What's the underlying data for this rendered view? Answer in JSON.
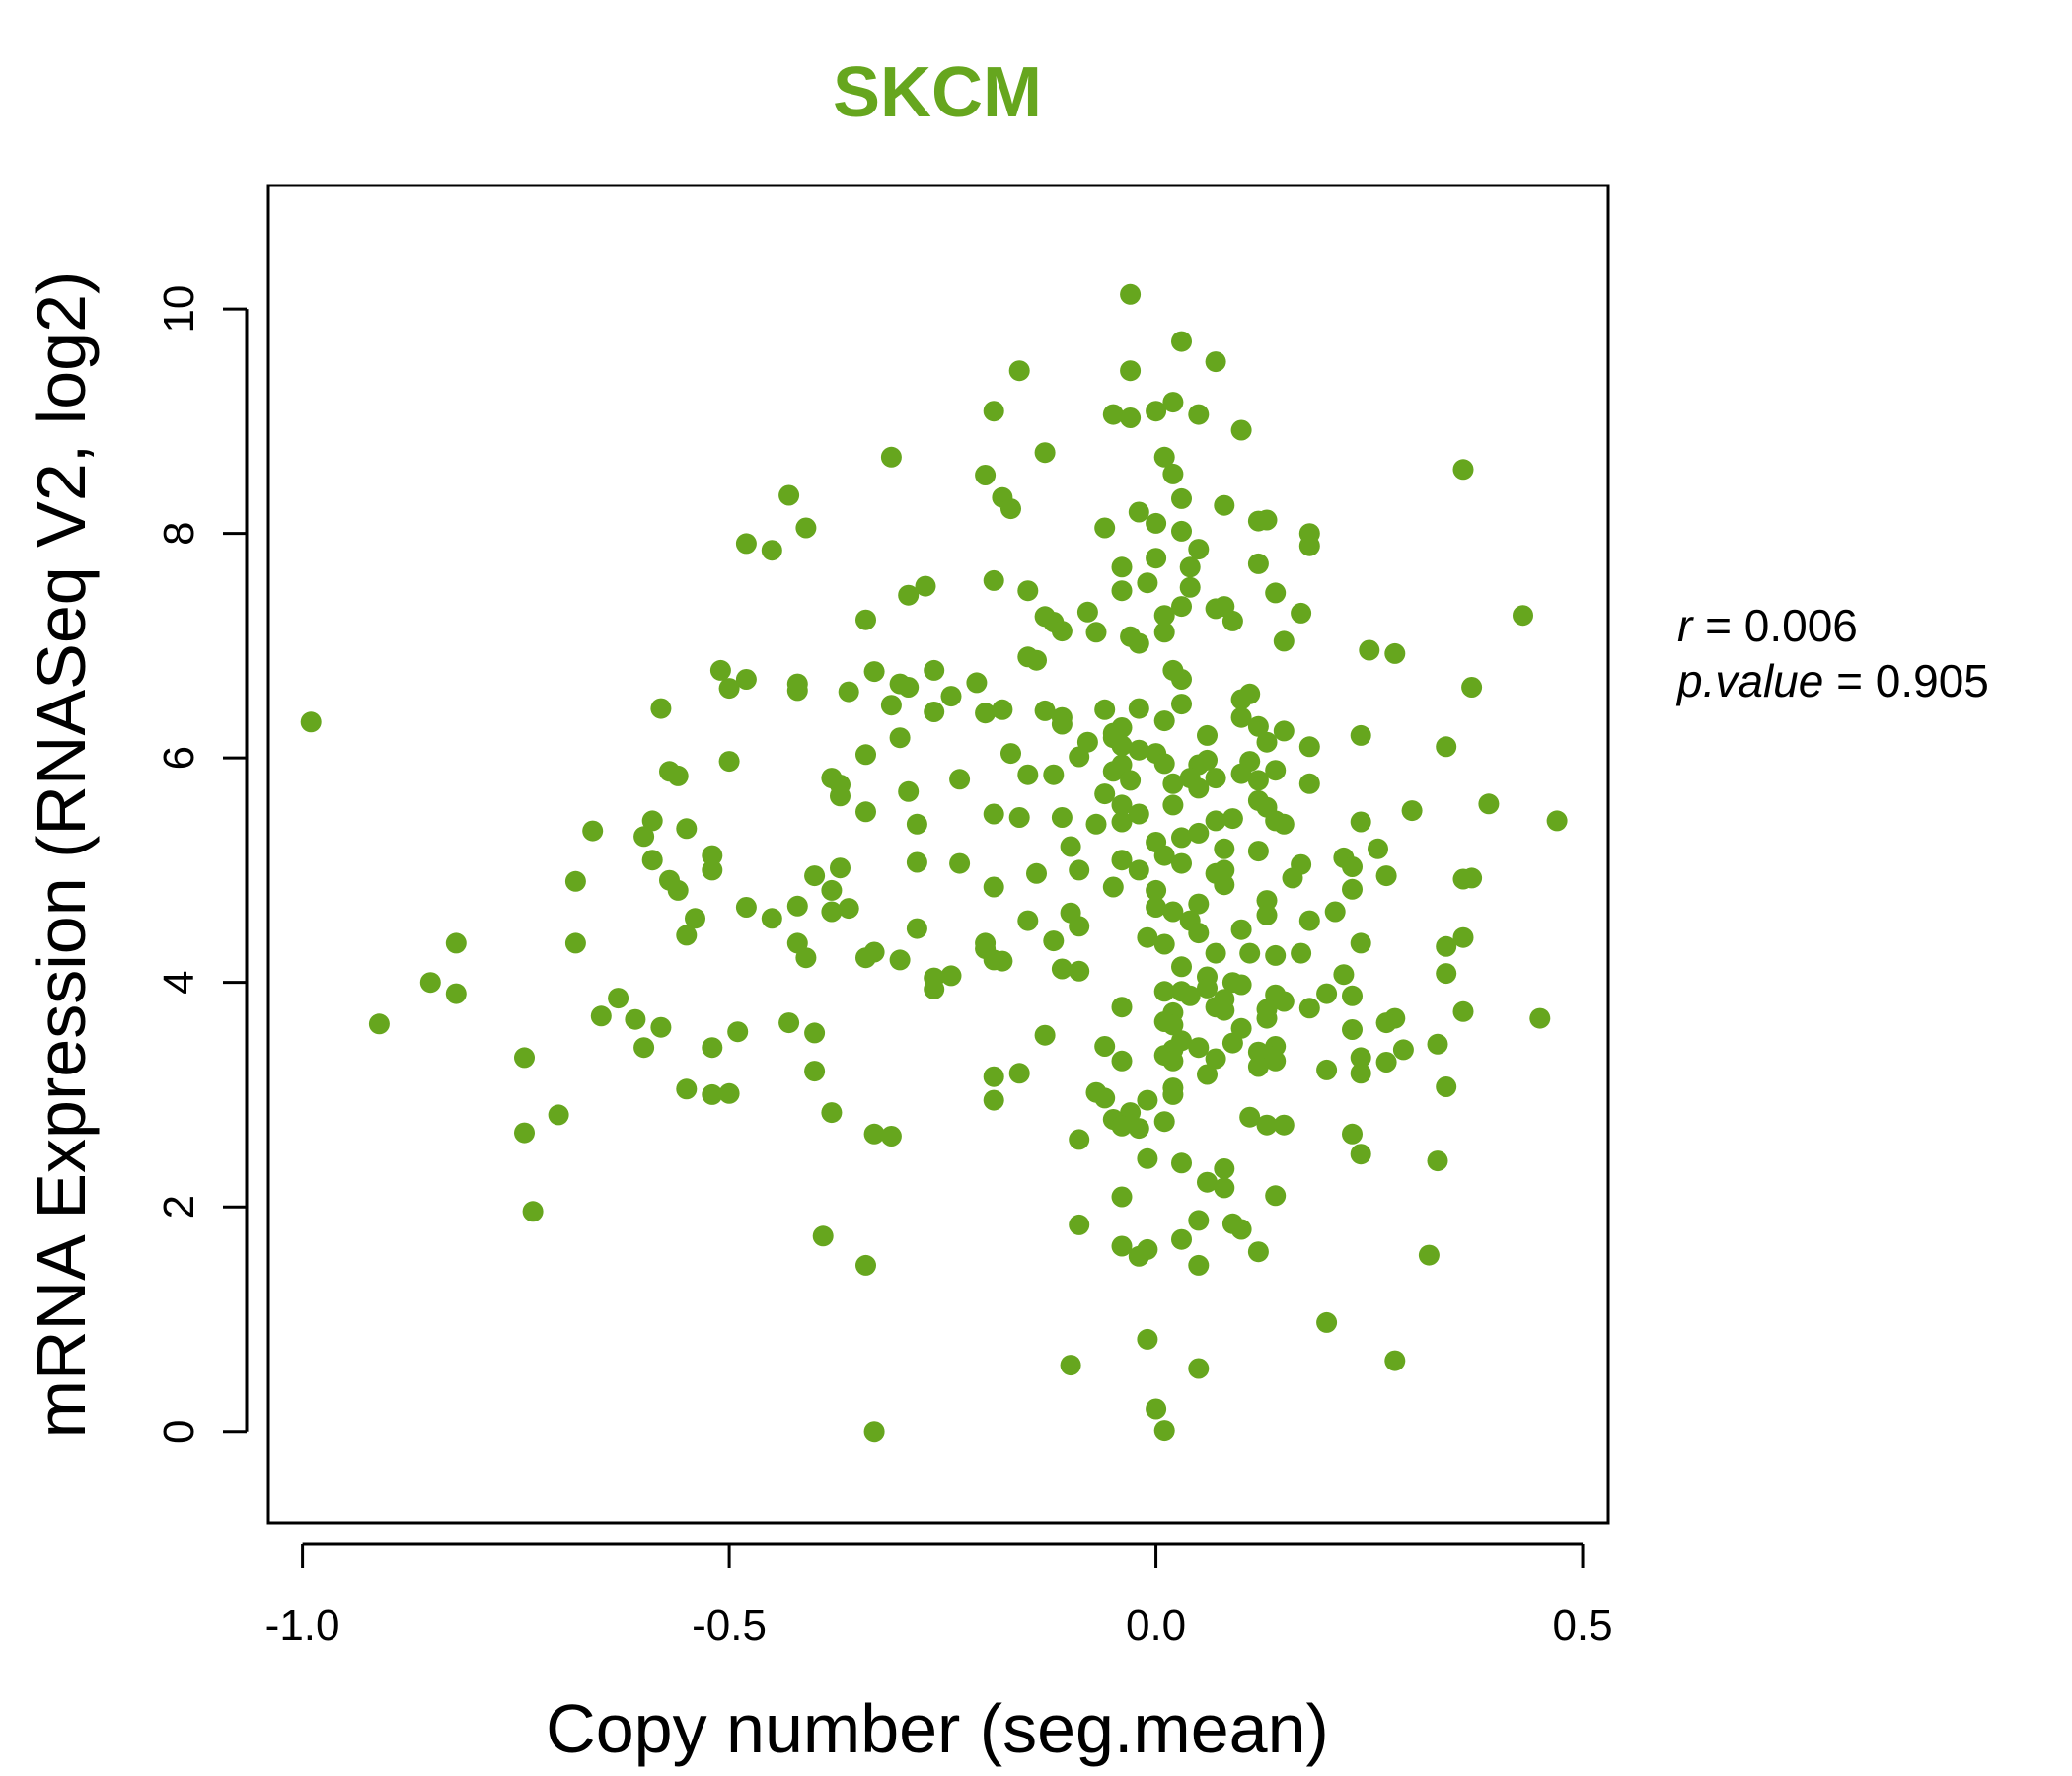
{
  "chart_data": {
    "type": "scatter",
    "title": "SKCM",
    "xlabel": "Copy number (seg.mean)",
    "ylabel": "mRNA Expression (RNASeq V2, log2)",
    "xlim": [
      -1.04,
      0.53
    ],
    "ylim": [
      -0.82,
      11.1
    ],
    "xticks": [
      -1.0,
      -0.5,
      0.0,
      0.5
    ],
    "xtick_labels": [
      "-1.0",
      "-0.5",
      "0.0",
      "0.5"
    ],
    "yticks": [
      0,
      2,
      4,
      6,
      8,
      10
    ],
    "ytick_labels": [
      "0",
      "2",
      "4",
      "6",
      "8",
      "10"
    ],
    "grid": false,
    "point_color": "#66a61e",
    "title_color": "#66a61e",
    "stats": {
      "r_label": "r",
      "r_value": "0.006",
      "p_label": "p.value",
      "p_value": "0.905"
    },
    "points": [
      [
        -0.03,
        10.13
      ],
      [
        0.03,
        9.71
      ],
      [
        0.07,
        9.53
      ],
      [
        -0.16,
        9.45
      ],
      [
        -0.03,
        9.45
      ],
      [
        0.02,
        9.17
      ],
      [
        -0.19,
        9.09
      ],
      [
        0.0,
        9.09
      ],
      [
        -0.05,
        9.06
      ],
      [
        0.05,
        9.06
      ],
      [
        -0.03,
        9.03
      ],
      [
        0.1,
        8.92
      ],
      [
        -0.31,
        8.68
      ],
      [
        -0.13,
        8.72
      ],
      [
        0.01,
        8.68
      ],
      [
        0.02,
        8.53
      ],
      [
        0.36,
        8.57
      ],
      [
        -0.2,
        8.52
      ],
      [
        -0.43,
        8.34
      ],
      [
        -0.18,
        8.32
      ],
      [
        -0.17,
        8.22
      ],
      [
        0.03,
        8.31
      ],
      [
        0.08,
        8.25
      ],
      [
        -0.02,
        8.19
      ],
      [
        0.12,
        8.11
      ],
      [
        0.0,
        8.09
      ],
      [
        0.13,
        8.12
      ],
      [
        -0.41,
        8.05
      ],
      [
        -0.06,
        8.05
      ],
      [
        0.03,
        8.02
      ],
      [
        0.18,
        8.0
      ],
      [
        -0.48,
        7.91
      ],
      [
        0.18,
        7.89
      ],
      [
        -0.45,
        7.85
      ],
      [
        0.05,
        7.86
      ],
      [
        0.0,
        7.78
      ],
      [
        0.12,
        7.73
      ],
      [
        -0.04,
        7.7
      ],
      [
        0.04,
        7.7
      ],
      [
        -0.19,
        7.58
      ],
      [
        -0.01,
        7.56
      ],
      [
        0.04,
        7.52
      ],
      [
        -0.27,
        7.53
      ],
      [
        -0.04,
        7.49
      ],
      [
        -0.15,
        7.49
      ],
      [
        0.14,
        7.47
      ],
      [
        -0.29,
        7.45
      ],
      [
        0.08,
        7.35
      ],
      [
        0.03,
        7.35
      ],
      [
        0.07,
        7.33
      ],
      [
        0.17,
        7.29
      ],
      [
        -0.13,
        7.26
      ],
      [
        -0.12,
        7.21
      ],
      [
        -0.08,
        7.3
      ],
      [
        0.01,
        7.27
      ],
      [
        0.43,
        7.27
      ],
      [
        -0.34,
        7.23
      ],
      [
        0.09,
        7.22
      ],
      [
        -0.11,
        7.13
      ],
      [
        -0.07,
        7.12
      ],
      [
        -0.03,
        7.08
      ],
      [
        0.01,
        7.12
      ],
      [
        0.15,
        7.04
      ],
      [
        -0.02,
        7.02
      ],
      [
        0.25,
        6.96
      ],
      [
        0.28,
        6.93
      ],
      [
        -0.15,
        6.9
      ],
      [
        -0.14,
        6.87
      ],
      [
        0.02,
        6.78
      ],
      [
        -0.26,
        6.78
      ],
      [
        -0.33,
        6.77
      ],
      [
        -0.51,
        6.78
      ],
      [
        0.03,
        6.7
      ],
      [
        -0.48,
        6.7
      ],
      [
        -0.3,
        6.66
      ],
      [
        -0.42,
        6.66
      ],
      [
        -0.29,
        6.63
      ],
      [
        -0.21,
        6.67
      ],
      [
        0.37,
        6.63
      ],
      [
        -0.5,
        6.62
      ],
      [
        -0.42,
        6.6
      ],
      [
        -0.36,
        6.59
      ],
      [
        0.11,
        6.57
      ],
      [
        0.1,
        6.52
      ],
      [
        -0.24,
        6.55
      ],
      [
        -0.31,
        6.47
      ],
      [
        0.03,
        6.48
      ],
      [
        -0.58,
        6.44
      ],
      [
        -0.18,
        6.43
      ],
      [
        -0.13,
        6.42
      ],
      [
        -0.06,
        6.43
      ],
      [
        -0.02,
        6.44
      ],
      [
        -0.2,
        6.4
      ],
      [
        -0.26,
        6.41
      ],
      [
        0.1,
        6.36
      ],
      [
        -0.11,
        6.36
      ],
      [
        0.01,
        6.33
      ],
      [
        -0.99,
        6.32
      ],
      [
        0.12,
        6.28
      ],
      [
        -0.04,
        6.27
      ],
      [
        -0.11,
        6.3
      ],
      [
        -0.05,
        6.22
      ],
      [
        0.15,
        6.24
      ],
      [
        0.24,
        6.2
      ],
      [
        -0.05,
        6.18
      ],
      [
        0.06,
        6.2
      ],
      [
        -0.3,
        6.18
      ],
      [
        0.13,
        6.14
      ],
      [
        -0.08,
        6.14
      ],
      [
        -0.04,
        6.11
      ],
      [
        0.34,
        6.1
      ],
      [
        0.18,
        6.1
      ],
      [
        -0.02,
        6.07
      ],
      [
        0.0,
        6.04
      ],
      [
        -0.34,
        6.03
      ],
      [
        -0.17,
        6.04
      ],
      [
        0.11,
        5.97
      ],
      [
        0.06,
        5.98
      ],
      [
        -0.5,
        5.97
      ],
      [
        -0.09,
        6.01
      ],
      [
        0.01,
        5.95
      ],
      [
        -0.04,
        5.94
      ],
      [
        0.05,
        5.94
      ],
      [
        -0.57,
        5.88
      ],
      [
        0.14,
        5.89
      ],
      [
        -0.05,
        5.88
      ],
      [
        -0.12,
        5.85
      ],
      [
        0.1,
        5.86
      ],
      [
        -0.15,
        5.85
      ],
      [
        0.04,
        5.82
      ],
      [
        -0.38,
        5.82
      ],
      [
        -0.56,
        5.84
      ],
      [
        -0.23,
        5.81
      ],
      [
        0.07,
        5.82
      ],
      [
        0.12,
        5.8
      ],
      [
        -0.03,
        5.8
      ],
      [
        0.02,
        5.77
      ],
      [
        0.18,
        5.77
      ],
      [
        -0.37,
        5.76
      ],
      [
        0.05,
        5.73
      ],
      [
        -0.29,
        5.7
      ],
      [
        -0.06,
        5.68
      ],
      [
        -0.37,
        5.66
      ],
      [
        0.12,
        5.62
      ],
      [
        0.02,
        5.58
      ],
      [
        -0.04,
        5.58
      ],
      [
        0.39,
        5.59
      ],
      [
        0.13,
        5.56
      ],
      [
        -0.19,
        5.5
      ],
      [
        0.3,
        5.53
      ],
      [
        -0.02,
        5.5
      ],
      [
        -0.16,
        5.47
      ],
      [
        0.09,
        5.46
      ],
      [
        -0.34,
        5.52
      ],
      [
        0.47,
        5.44
      ],
      [
        0.14,
        5.44
      ],
      [
        0.07,
        5.44
      ],
      [
        -0.59,
        5.44
      ],
      [
        0.24,
        5.43
      ],
      [
        -0.11,
        5.47
      ],
      [
        0.15,
        5.41
      ],
      [
        -0.04,
        5.43
      ],
      [
        -0.07,
        5.41
      ],
      [
        -0.55,
        5.37
      ],
      [
        -0.28,
        5.41
      ],
      [
        -0.66,
        5.35
      ],
      [
        0.05,
        5.33
      ],
      [
        -0.6,
        5.3
      ],
      [
        0.03,
        5.29
      ],
      [
        0.0,
        5.25
      ],
      [
        -0.1,
        5.21
      ],
      [
        0.08,
        5.19
      ],
      [
        0.26,
        5.19
      ],
      [
        0.12,
        5.17
      ],
      [
        0.01,
        5.13
      ],
      [
        -0.52,
        5.13
      ],
      [
        0.22,
        5.11
      ],
      [
        -0.04,
        5.09
      ],
      [
        -0.28,
        5.07
      ],
      [
        -0.59,
        5.09
      ],
      [
        -0.23,
        5.06
      ],
      [
        0.03,
        5.06
      ],
      [
        0.17,
        5.05
      ],
      [
        0.23,
        5.03
      ],
      [
        -0.09,
        5.0
      ],
      [
        -0.02,
        5.0
      ],
      [
        -0.37,
        5.02
      ],
      [
        0.08,
        5.0
      ],
      [
        -0.52,
        5.0
      ],
      [
        0.07,
        4.97
      ],
      [
        0.27,
        4.95
      ],
      [
        0.37,
        4.93
      ],
      [
        -0.4,
        4.95
      ],
      [
        0.36,
        4.92
      ],
      [
        -0.14,
        4.97
      ],
      [
        -0.57,
        4.91
      ],
      [
        -0.68,
        4.9
      ],
      [
        -0.05,
        4.85
      ],
      [
        0.16,
        4.93
      ],
      [
        0.08,
        4.87
      ],
      [
        0.23,
        4.83
      ],
      [
        -0.19,
        4.85
      ],
      [
        -0.56,
        4.82
      ],
      [
        -0.38,
        4.82
      ],
      [
        0.0,
        4.82
      ],
      [
        0.13,
        4.73
      ],
      [
        0.05,
        4.7
      ],
      [
        -0.38,
        4.63
      ],
      [
        -0.36,
        4.66
      ],
      [
        0.0,
        4.67
      ],
      [
        -0.48,
        4.67
      ],
      [
        -0.42,
        4.68
      ],
      [
        0.21,
        4.63
      ],
      [
        0.02,
        4.63
      ],
      [
        -0.1,
        4.62
      ],
      [
        0.13,
        4.6
      ],
      [
        -0.45,
        4.57
      ],
      [
        -0.54,
        4.57
      ],
      [
        0.18,
        4.55
      ],
      [
        -0.15,
        4.55
      ],
      [
        0.04,
        4.55
      ],
      [
        -0.09,
        4.5
      ],
      [
        -0.28,
        4.48
      ],
      [
        0.1,
        4.47
      ],
      [
        0.05,
        4.44
      ],
      [
        -0.55,
        4.42
      ],
      [
        0.36,
        4.4
      ],
      [
        -0.01,
        4.4
      ],
      [
        -0.12,
        4.37
      ],
      [
        -0.82,
        4.35
      ],
      [
        -0.68,
        4.35
      ],
      [
        0.24,
        4.35
      ],
      [
        -0.42,
        4.35
      ],
      [
        -0.2,
        4.35
      ],
      [
        0.01,
        4.34
      ],
      [
        0.34,
        4.32
      ],
      [
        -0.2,
        4.3
      ],
      [
        0.07,
        4.26
      ],
      [
        0.17,
        4.26
      ],
      [
        -0.33,
        4.27
      ],
      [
        0.11,
        4.26
      ],
      [
        0.14,
        4.24
      ],
      [
        -0.41,
        4.22
      ],
      [
        -0.19,
        4.2
      ],
      [
        -0.34,
        4.22
      ],
      [
        -0.3,
        4.2
      ],
      [
        -0.18,
        4.19
      ],
      [
        0.03,
        4.14
      ],
      [
        -0.11,
        4.12
      ],
      [
        -0.09,
        4.1
      ],
      [
        0.34,
        4.08
      ],
      [
        0.22,
        4.07
      ],
      [
        0.06,
        4.05
      ],
      [
        -0.24,
        4.06
      ],
      [
        -0.26,
        4.04
      ],
      [
        -0.85,
        4.0
      ],
      [
        0.09,
        4.0
      ],
      [
        0.06,
        3.95
      ],
      [
        0.1,
        3.98
      ],
      [
        -0.26,
        3.94
      ],
      [
        0.01,
        3.92
      ],
      [
        0.2,
        3.9
      ],
      [
        0.03,
        3.92
      ],
      [
        0.14,
        3.89
      ],
      [
        0.23,
        3.88
      ],
      [
        -0.82,
        3.9
      ],
      [
        0.04,
        3.88
      ],
      [
        0.08,
        3.85
      ],
      [
        -0.63,
        3.86
      ],
      [
        0.15,
        3.83
      ],
      [
        0.07,
        3.78
      ],
      [
        0.18,
        3.77
      ],
      [
        -0.04,
        3.78
      ],
      [
        0.13,
        3.76
      ],
      [
        0.08,
        3.75
      ],
      [
        0.36,
        3.74
      ],
      [
        0.02,
        3.73
      ],
      [
        -0.65,
        3.7
      ],
      [
        0.28,
        3.68
      ],
      [
        0.45,
        3.68
      ],
      [
        0.13,
        3.68
      ],
      [
        0.01,
        3.65
      ],
      [
        -0.61,
        3.67
      ],
      [
        0.27,
        3.64
      ],
      [
        -0.91,
        3.63
      ],
      [
        -0.43,
        3.64
      ],
      [
        0.02,
        3.62
      ],
      [
        -0.58,
        3.6
      ],
      [
        0.1,
        3.59
      ],
      [
        0.23,
        3.58
      ],
      [
        -0.4,
        3.55
      ],
      [
        -0.49,
        3.56
      ],
      [
        -0.13,
        3.53
      ],
      [
        0.03,
        3.48
      ],
      [
        0.09,
        3.46
      ],
      [
        0.33,
        3.45
      ],
      [
        0.14,
        3.43
      ],
      [
        -0.6,
        3.42
      ],
      [
        -0.52,
        3.42
      ],
      [
        0.05,
        3.42
      ],
      [
        -0.06,
        3.43
      ],
      [
        0.29,
        3.4
      ],
      [
        0.02,
        3.4
      ],
      [
        0.12,
        3.38
      ],
      [
        0.13,
        3.35
      ],
      [
        0.01,
        3.35
      ],
      [
        0.24,
        3.33
      ],
      [
        -0.74,
        3.33
      ],
      [
        0.07,
        3.32
      ],
      [
        -0.04,
        3.3
      ],
      [
        0.02,
        3.3
      ],
      [
        0.14,
        3.3
      ],
      [
        0.27,
        3.29
      ],
      [
        0.12,
        3.25
      ],
      [
        0.2,
        3.22
      ],
      [
        0.06,
        3.18
      ],
      [
        -0.4,
        3.21
      ],
      [
        -0.16,
        3.19
      ],
      [
        0.24,
        3.19
      ],
      [
        -0.19,
        3.16
      ],
      [
        0.34,
        3.07
      ],
      [
        0.02,
        3.06
      ],
      [
        -0.55,
        3.05
      ],
      [
        -0.5,
        3.01
      ],
      [
        -0.52,
        3.0
      ],
      [
        -0.07,
        3.02
      ],
      [
        0.02,
        3.0
      ],
      [
        -0.06,
        2.97
      ],
      [
        -0.01,
        2.95
      ],
      [
        -0.19,
        2.95
      ],
      [
        -0.38,
        2.84
      ],
      [
        -0.03,
        2.84
      ],
      [
        0.11,
        2.8
      ],
      [
        0.13,
        2.73
      ],
      [
        0.15,
        2.73
      ],
      [
        0.01,
        2.76
      ],
      [
        -0.05,
        2.78
      ],
      [
        -0.04,
        2.72
      ],
      [
        -0.02,
        2.7
      ],
      [
        -0.74,
        2.66
      ],
      [
        -0.33,
        2.65
      ],
      [
        0.23,
        2.65
      ],
      [
        -0.31,
        2.63
      ],
      [
        -0.09,
        2.6
      ],
      [
        -0.7,
        2.82
      ],
      [
        0.24,
        2.47
      ],
      [
        -0.01,
        2.43
      ],
      [
        0.03,
        2.39
      ],
      [
        0.33,
        2.41
      ],
      [
        0.08,
        2.34
      ],
      [
        0.06,
        2.22
      ],
      [
        0.08,
        2.17
      ],
      [
        -0.04,
        2.09
      ],
      [
        0.14,
        2.1
      ],
      [
        -0.73,
        1.96
      ],
      [
        -0.09,
        1.84
      ],
      [
        0.05,
        1.88
      ],
      [
        0.09,
        1.85
      ],
      [
        0.1,
        1.8
      ],
      [
        -0.39,
        1.74
      ],
      [
        0.03,
        1.71
      ],
      [
        -0.04,
        1.65
      ],
      [
        -0.01,
        1.62
      ],
      [
        0.12,
        1.6
      ],
      [
        -0.02,
        1.56
      ],
      [
        0.32,
        1.57
      ],
      [
        -0.34,
        1.48
      ],
      [
        0.05,
        1.48
      ],
      [
        0.2,
        0.97
      ],
      [
        -0.01,
        0.82
      ],
      [
        0.28,
        0.63
      ],
      [
        -0.1,
        0.59
      ],
      [
        0.05,
        0.56
      ],
      [
        0.0,
        0.2
      ],
      [
        -0.33,
        0.0
      ],
      [
        0.01,
        0.01
      ]
    ]
  }
}
